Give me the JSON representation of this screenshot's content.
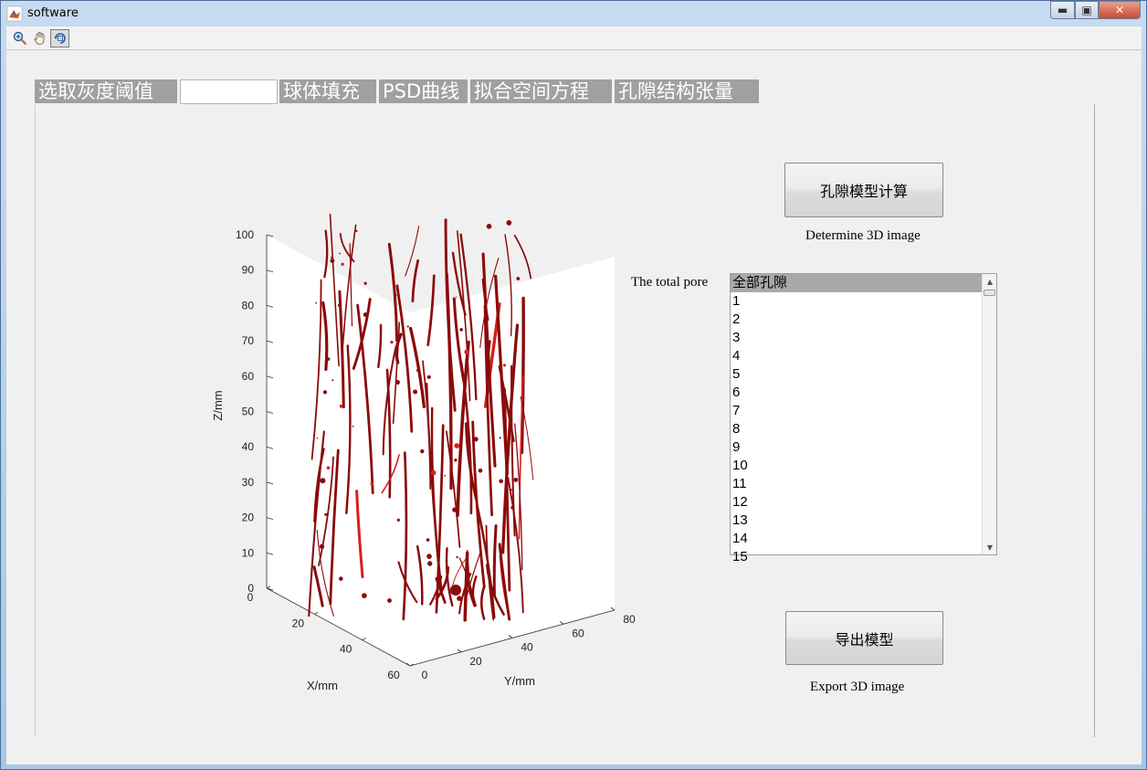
{
  "window": {
    "title": "software"
  },
  "toolbar": {
    "tools": [
      "zoom-in-icon",
      "pan-hand-icon",
      "rotate-3d-icon"
    ]
  },
  "tabs": [
    {
      "label": "选取灰度阈值"
    },
    {
      "label": ""
    },
    {
      "label": "球体填充"
    },
    {
      "label": "PSD曲线"
    },
    {
      "label": "拟合空间方程"
    },
    {
      "label": "孔隙结构张量"
    }
  ],
  "actions": {
    "compute_label": "孔隙模型计算",
    "compute_caption": "Determine 3D image",
    "export_label": "导出模型",
    "export_caption": "Export 3D image"
  },
  "pore_list": {
    "label": "The total pore",
    "items": [
      "全部孔隙",
      "1",
      "2",
      "3",
      "4",
      "5",
      "6",
      "7",
      "8",
      "9",
      "10",
      "11",
      "12",
      "13",
      "14",
      "15"
    ],
    "selected_index": 0
  },
  "chart_data": {
    "type": "3d-volume",
    "xlabel": "X/mm",
    "ylabel": "Y/mm",
    "zlabel": "Z/mm",
    "xlim": [
      0,
      60
    ],
    "ylim": [
      0,
      80
    ],
    "zlim": [
      0,
      100
    ],
    "x_ticks": [
      "0",
      "20",
      "40",
      "60"
    ],
    "y_ticks": [
      "0",
      "20",
      "40",
      "60",
      "80"
    ],
    "z_ticks": [
      "0",
      "10",
      "20",
      "30",
      "40",
      "50",
      "60",
      "70",
      "80",
      "90",
      "100"
    ],
    "pore_color": "#8b0a0a",
    "pore_highlight": "#d8201e"
  }
}
